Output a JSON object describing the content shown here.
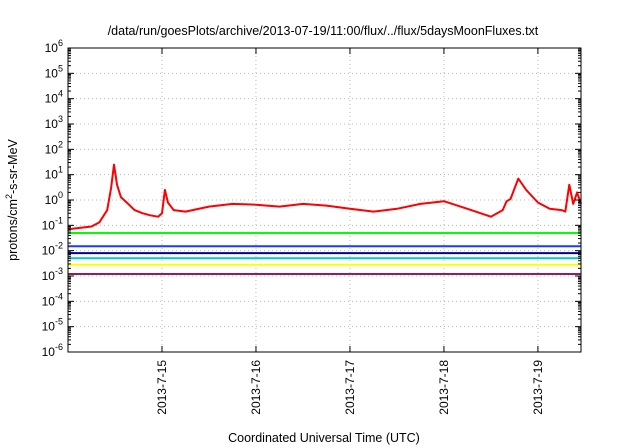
{
  "chart_data": {
    "type": "line",
    "title": "/data/run/goesPlots/archive/2013-07-19/11:00/flux/../flux/5daysMoonFluxes.txt",
    "xlabel": "Coordinated Universal Time (UTC)",
    "ylabel": {
      "prefix": "protons/cm",
      "sup": "2",
      "suffix": "-s-sr-MeV"
    },
    "yscale": "log",
    "ylim": [
      1e-06,
      1000000.0
    ],
    "xlim": [
      "2013-07-14 00:00",
      "2013-07-19 11:00"
    ],
    "grid": true,
    "legend": "none",
    "yticks": [
      {
        "value": 1e-06,
        "base": "10",
        "exp": "-6"
      },
      {
        "value": 1e-05,
        "base": "10",
        "exp": "-5"
      },
      {
        "value": 0.0001,
        "base": "10",
        "exp": "-4"
      },
      {
        "value": 0.001,
        "base": "10",
        "exp": "-3"
      },
      {
        "value": 0.01,
        "base": "10",
        "exp": "-2"
      },
      {
        "value": 0.1,
        "base": "10",
        "exp": "-1"
      },
      {
        "value": 1,
        "base": "10",
        "exp": "0"
      },
      {
        "value": 10.0,
        "base": "10",
        "exp": "1"
      },
      {
        "value": 100.0,
        "base": "10",
        "exp": "2"
      },
      {
        "value": 1000.0,
        "base": "10",
        "exp": "3"
      },
      {
        "value": 10000.0,
        "base": "10",
        "exp": "4"
      },
      {
        "value": 100000.0,
        "base": "10",
        "exp": "5"
      },
      {
        "value": 1000000.0,
        "base": "10",
        "exp": "6"
      }
    ],
    "xticks": [
      {
        "date": "2013-07-15 00:00",
        "label": "2013-7-15"
      },
      {
        "date": "2013-07-16 00:00",
        "label": "2013-7-16"
      },
      {
        "date": "2013-07-17 00:00",
        "label": "2013-7-17"
      },
      {
        "date": "2013-07-18 00:00",
        "label": "2013-7-18"
      },
      {
        "date": "2013-07-19 00:00",
        "label": "2013-7-19"
      }
    ],
    "series": [
      {
        "color": "#ff0000",
        "x": [
          "2013-07-14 00:00",
          "2013-07-14 06:00",
          "2013-07-14 08:00",
          "2013-07-14 10:00",
          "2013-07-14 11:00",
          "2013-07-14 11:45",
          "2013-07-14 12:30",
          "2013-07-14 13:30",
          "2013-07-14 15:00",
          "2013-07-14 17:00",
          "2013-07-14 19:00",
          "2013-07-14 21:00",
          "2013-07-14 23:00",
          "2013-07-15 00:00",
          "2013-07-15 00:45",
          "2013-07-15 01:30",
          "2013-07-15 03:00",
          "2013-07-15 06:00",
          "2013-07-15 12:00",
          "2013-07-15 18:00",
          "2013-07-16 00:00",
          "2013-07-16 06:00",
          "2013-07-16 12:00",
          "2013-07-16 18:00",
          "2013-07-17 00:00",
          "2013-07-17 06:00",
          "2013-07-17 12:00",
          "2013-07-17 18:00",
          "2013-07-18 00:00",
          "2013-07-18 06:00",
          "2013-07-18 12:00",
          "2013-07-18 15:00",
          "2013-07-18 16:00",
          "2013-07-18 17:00",
          "2013-07-18 19:00",
          "2013-07-18 21:00",
          "2013-07-19 00:00",
          "2013-07-19 03:00",
          "2013-07-19 06:00",
          "2013-07-19 07:00",
          "2013-07-19 08:00",
          "2013-07-19 09:00",
          "2013-07-19 10:00",
          "2013-07-19 11:00"
        ],
        "values": [
          0.07,
          0.09,
          0.13,
          0.4,
          3,
          25,
          4,
          1.3,
          0.8,
          0.4,
          0.3,
          0.25,
          0.22,
          0.3,
          2.5,
          0.8,
          0.4,
          0.35,
          0.55,
          0.7,
          0.65,
          0.55,
          0.7,
          0.6,
          0.45,
          0.35,
          0.45,
          0.7,
          0.9,
          0.45,
          0.22,
          0.4,
          0.9,
          1.1,
          7,
          2.5,
          0.8,
          0.45,
          0.4,
          0.35,
          4,
          0.7,
          2.0,
          0.7
        ]
      },
      {
        "color": "#00ff00",
        "x": [
          "2013-07-14 00:00",
          "2013-07-19 11:00"
        ],
        "values": [
          0.05,
          0.05
        ]
      },
      {
        "color": "#1a3cff",
        "x": [
          "2013-07-14 00:00",
          "2013-07-19 11:00"
        ],
        "values": [
          0.015,
          0.015
        ]
      },
      {
        "color": "#0000a0",
        "x": [
          "2013-07-14 00:00",
          "2013-07-19 11:00"
        ],
        "values": [
          0.008,
          0.008
        ]
      },
      {
        "color": "#00c8c8",
        "x": [
          "2013-07-14 00:00",
          "2013-07-19 11:00"
        ],
        "values": [
          0.005,
          0.005
        ]
      },
      {
        "color": "#ffff00",
        "x": [
          "2013-07-14 00:00",
          "2013-07-19 11:00"
        ],
        "values": [
          0.0028,
          0.0028
        ]
      },
      {
        "color": "#8b2060",
        "x": [
          "2013-07-14 00:00",
          "2013-07-19 11:00"
        ],
        "values": [
          0.0012,
          0.0012
        ]
      }
    ]
  }
}
